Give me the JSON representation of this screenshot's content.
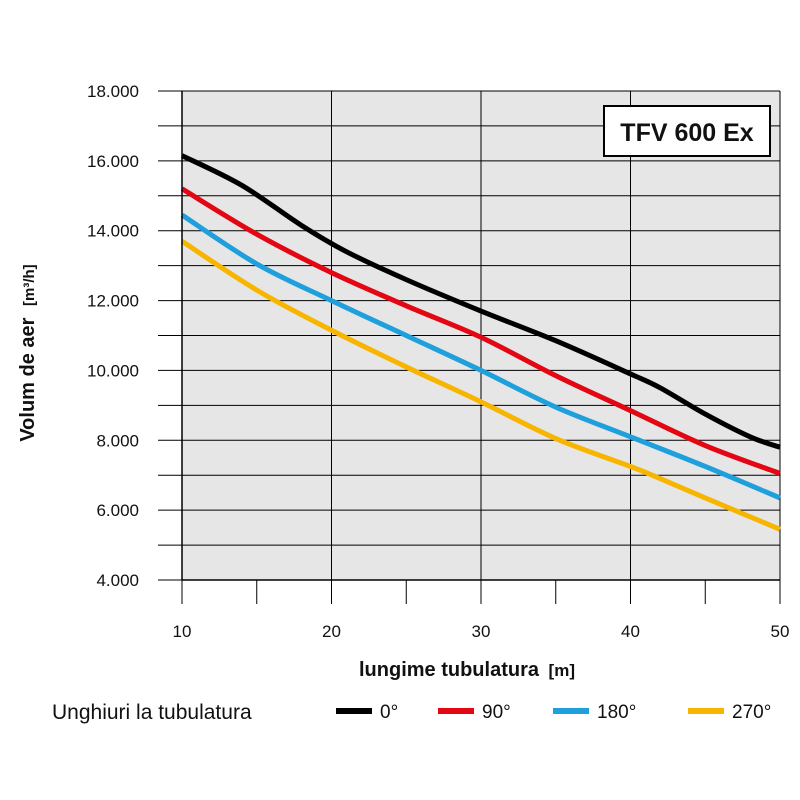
{
  "chart_data": {
    "type": "line",
    "title": "TFV 600 Ex",
    "xlabel": "lungime tubulatura",
    "xlabel_unit": "[m]",
    "ylabel": "Volum de aer",
    "ylabel_unit": "[m³/h]",
    "xlim": [
      10,
      50
    ],
    "ylim": [
      4000,
      18000
    ],
    "x_ticks": [
      10,
      20,
      30,
      40,
      50
    ],
    "x_tick_labels": [
      "10",
      "20",
      "30",
      "40",
      "50"
    ],
    "y_ticks": [
      4000,
      6000,
      8000,
      10000,
      12000,
      14000,
      16000,
      18000
    ],
    "y_tick_labels": [
      "4.000",
      "6.000",
      "8.000",
      "10.000",
      "12.000",
      "14.000",
      "16.000",
      "18.000"
    ],
    "grid": true,
    "legend_title": "Unghiuri la tubulatura",
    "legend_position": "bottom",
    "series": [
      {
        "name": "0°",
        "color": "#000000",
        "x": [
          10,
          14,
          18,
          21,
          25,
          30,
          35,
          40,
          42,
          45,
          48,
          50
        ],
        "y": [
          16150,
          15300,
          14150,
          13400,
          12600,
          11700,
          10850,
          9900,
          9500,
          8750,
          8100,
          7800
        ]
      },
      {
        "name": "90°",
        "color": "#e30613",
        "x": [
          10,
          15,
          20,
          25,
          30,
          35,
          40,
          45,
          50
        ],
        "y": [
          15200,
          13900,
          12800,
          11850,
          10950,
          9850,
          8850,
          7850,
          7050
        ]
      },
      {
        "name": "180°",
        "color": "#1fa0dc",
        "x": [
          10,
          15,
          20,
          25,
          30,
          35,
          40,
          45,
          50
        ],
        "y": [
          14450,
          13050,
          12000,
          11000,
          10000,
          8950,
          8100,
          7250,
          6350
        ]
      },
      {
        "name": "270°",
        "color": "#f7b500",
        "x": [
          10,
          15,
          20,
          25,
          30,
          35,
          40,
          42,
          45,
          50
        ],
        "y": [
          13700,
          12300,
          11150,
          10100,
          9100,
          8050,
          7250,
          6900,
          6350,
          5450
        ]
      }
    ]
  }
}
